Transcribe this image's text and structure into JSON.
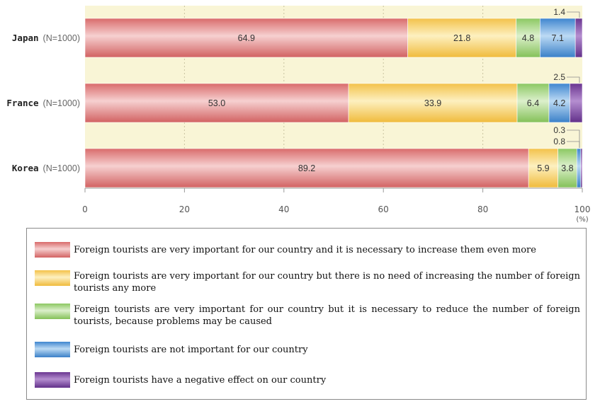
{
  "chart_data": {
    "type": "bar",
    "orientation": "horizontal",
    "stacked": true,
    "unit_label": "(%)",
    "xlim": [
      0,
      100
    ],
    "xticks": [
      "0",
      "20",
      "40",
      "60",
      "80",
      "100"
    ],
    "categories": [
      {
        "name": "Japan",
        "sample": "(N=1000)"
      },
      {
        "name": "France",
        "sample": "(N=1000)"
      },
      {
        "name": "Korea",
        "sample": "(N=1000)"
      }
    ],
    "series": [
      {
        "name": "Foreign tourists are very important for our country and it is necessary to increase them even more",
        "color": "#e08a8a",
        "values": [
          64.9,
          53.0,
          89.2
        ],
        "labels": [
          "64.9",
          "53.0",
          "89.2"
        ]
      },
      {
        "name": "Foreign tourists are very important for our country but there is no need of increasing the number of foreign tourists any more",
        "color": "#f7d36a",
        "values": [
          21.8,
          33.9,
          5.9
        ],
        "labels": [
          "21.8",
          "33.9",
          "5.9"
        ]
      },
      {
        "name": "Foreign tourists are very important for our country but it is necessary to reduce the number of foreign tourists, because problems may be caused",
        "color": "#9fd27a",
        "values": [
          4.8,
          6.4,
          3.8
        ],
        "labels": [
          "4.8",
          "6.4",
          "3.8"
        ]
      },
      {
        "name": "Foreign tourists are not important for our country",
        "color": "#5b9bd8",
        "values": [
          7.1,
          4.2,
          0.8
        ],
        "labels": [
          "7.1",
          "4.2",
          "0.8"
        ]
      },
      {
        "name": "Foreign tourists have a negative effect on our country",
        "color": "#7e4ca0",
        "values": [
          1.4,
          2.5,
          0.3
        ],
        "labels": [
          "1.4",
          "2.5",
          "0.3"
        ]
      }
    ],
    "callouts": [
      {
        "category": "Japan",
        "texts": [
          "1.4"
        ]
      },
      {
        "category": "France",
        "texts": [
          "2.5"
        ]
      },
      {
        "category": "Korea",
        "texts": [
          "0.3",
          "0.8"
        ]
      }
    ]
  },
  "legend": {
    "items": [
      {
        "text": "Foreign tourists are very important for our country and it is necessary to increase them even more"
      },
      {
        "text": "Foreign tourists are very important for our country but there is no need of increasing the number of foreign tourists any more"
      },
      {
        "text": "Foreign tourists are very important for our country but it is necessary to reduce the number of foreign tourists, because problems may be caused"
      },
      {
        "text": "Foreign tourists are not important for our country"
      },
      {
        "text": "Foreign tourists have a negative effect on our country"
      }
    ]
  }
}
